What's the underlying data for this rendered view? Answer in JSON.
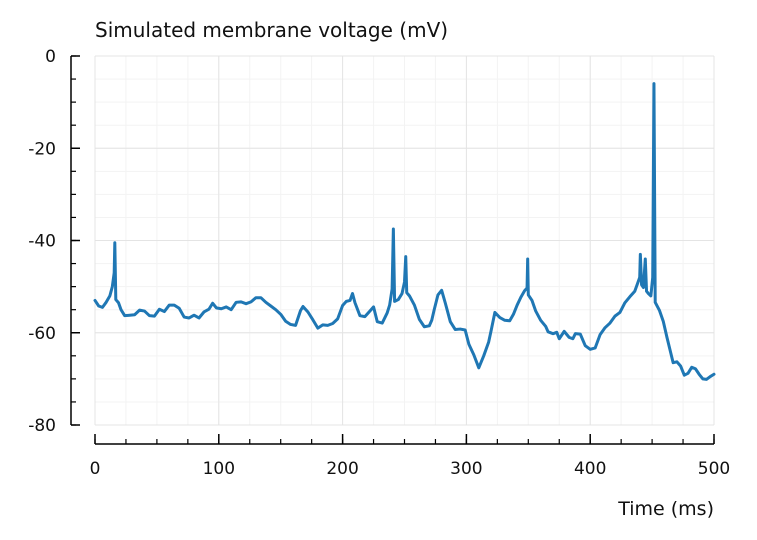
{
  "chart_data": {
    "type": "line",
    "title": "Simulated membrane voltage (mV)",
    "xlabel": "Time (ms)",
    "ylabel": "",
    "xlim": [
      0,
      500
    ],
    "ylim": [
      -80,
      0
    ],
    "x_ticks": [
      0,
      100,
      200,
      300,
      400,
      500
    ],
    "y_ticks": [
      0,
      -20,
      -40,
      -60,
      -80
    ],
    "grid": true,
    "legend": "none",
    "series": [
      {
        "color": "#1f77b4",
        "points": [
          [
            0,
            -53
          ],
          [
            3,
            -54.2
          ],
          [
            6,
            -54.5
          ],
          [
            9,
            -53.4
          ],
          [
            12,
            -52
          ],
          [
            14,
            -50
          ],
          [
            15.5,
            -47
          ],
          [
            16,
            -40.5
          ],
          [
            16.8,
            -52.8
          ],
          [
            19,
            -53.5
          ],
          [
            21,
            -55
          ],
          [
            24,
            -56.3
          ],
          [
            28,
            -56.2
          ],
          [
            32,
            -56.1
          ],
          [
            36,
            -55.1
          ],
          [
            40,
            -55.3
          ],
          [
            44,
            -56.3
          ],
          [
            48,
            -56.4
          ],
          [
            52,
            -54.9
          ],
          [
            56,
            -55.4
          ],
          [
            60,
            -54
          ],
          [
            64,
            -54
          ],
          [
            68,
            -54.7
          ],
          [
            72,
            -56.6
          ],
          [
            76,
            -56.8
          ],
          [
            80,
            -56.2
          ],
          [
            84,
            -56.8
          ],
          [
            88,
            -55.5
          ],
          [
            92,
            -54.9
          ],
          [
            95,
            -53.6
          ],
          [
            98,
            -54.6
          ],
          [
            102,
            -54.8
          ],
          [
            106,
            -54.4
          ],
          [
            110,
            -55
          ],
          [
            114,
            -53.4
          ],
          [
            118,
            -53.3
          ],
          [
            122,
            -53.7
          ],
          [
            126,
            -53.3
          ],
          [
            130,
            -52.4
          ],
          [
            134,
            -52.4
          ],
          [
            138,
            -53.4
          ],
          [
            142,
            -54.2
          ],
          [
            146,
            -55
          ],
          [
            150,
            -56
          ],
          [
            154,
            -57.5
          ],
          [
            158,
            -58.2
          ],
          [
            162,
            -58.4
          ],
          [
            166,
            -55.2
          ],
          [
            168,
            -54.3
          ],
          [
            172,
            -55.5
          ],
          [
            176,
            -57.2
          ],
          [
            180,
            -59
          ],
          [
            184,
            -58.3
          ],
          [
            188,
            -58.4
          ],
          [
            192,
            -58
          ],
          [
            196,
            -57
          ],
          [
            200,
            -54.1
          ],
          [
            203,
            -53.2
          ],
          [
            206,
            -53
          ],
          [
            208,
            -51.5
          ],
          [
            210,
            -53.5
          ],
          [
            214,
            -56.3
          ],
          [
            218,
            -56.5
          ],
          [
            222,
            -55.3
          ],
          [
            225,
            -54.4
          ],
          [
            228,
            -57.6
          ],
          [
            232,
            -57.9
          ],
          [
            236,
            -55.7
          ],
          [
            238,
            -54
          ],
          [
            240,
            -50.5
          ],
          [
            241,
            -37.5
          ],
          [
            242,
            -53.2
          ],
          [
            245,
            -52.8
          ],
          [
            248,
            -51.5
          ],
          [
            250,
            -49
          ],
          [
            251,
            -43.5
          ],
          [
            251.8,
            -51.3
          ],
          [
            254,
            -52
          ],
          [
            258,
            -54
          ],
          [
            262,
            -57.1
          ],
          [
            266,
            -58.7
          ],
          [
            270,
            -58.5
          ],
          [
            272,
            -57.3
          ],
          [
            274,
            -55
          ],
          [
            277,
            -51.8
          ],
          [
            280,
            -50.8
          ],
          [
            283,
            -53.6
          ],
          [
            287,
            -57.6
          ],
          [
            291,
            -59.3
          ],
          [
            295,
            -59.2
          ],
          [
            299,
            -59.4
          ],
          [
            302,
            -62.5
          ],
          [
            306,
            -64.8
          ],
          [
            310,
            -67.6
          ],
          [
            314,
            -65
          ],
          [
            318,
            -62
          ],
          [
            320,
            -59.5
          ],
          [
            323,
            -55.6
          ],
          [
            327,
            -56.7
          ],
          [
            331,
            -57.3
          ],
          [
            335,
            -57.4
          ],
          [
            338,
            -56
          ],
          [
            341,
            -54
          ],
          [
            344,
            -52.3
          ],
          [
            347,
            -50.9
          ],
          [
            349,
            -50.3
          ],
          [
            349.5,
            -44
          ],
          [
            350,
            -51.8
          ],
          [
            353,
            -53
          ],
          [
            356,
            -55.3
          ],
          [
            360,
            -57.3
          ],
          [
            364,
            -58.6
          ],
          [
            366,
            -59.8
          ],
          [
            370,
            -60.2
          ],
          [
            373,
            -59.9
          ],
          [
            375,
            -61.3
          ],
          [
            379,
            -59.7
          ],
          [
            383,
            -61
          ],
          [
            386,
            -61.3
          ],
          [
            388,
            -60.2
          ],
          [
            392,
            -60.3
          ],
          [
            396,
            -62.8
          ],
          [
            400,
            -63.6
          ],
          [
            404,
            -63.3
          ],
          [
            408,
            -60.4
          ],
          [
            412,
            -58.9
          ],
          [
            416,
            -57.9
          ],
          [
            420,
            -56.4
          ],
          [
            424,
            -55.6
          ],
          [
            428,
            -53.5
          ],
          [
            432,
            -52.2
          ],
          [
            436,
            -51
          ],
          [
            438,
            -49.5
          ],
          [
            440,
            -48
          ],
          [
            440.5,
            -43
          ],
          [
            441.5,
            -49.6
          ],
          [
            443,
            -50.2
          ],
          [
            444.5,
            -44
          ],
          [
            445.5,
            -51
          ],
          [
            447,
            -51.5
          ],
          [
            449,
            -52
          ],
          [
            450.5,
            -48
          ],
          [
            451.5,
            -6
          ],
          [
            452.5,
            -53.4
          ],
          [
            456,
            -55.2
          ],
          [
            459,
            -57.5
          ],
          [
            462,
            -61
          ],
          [
            465,
            -64.3
          ],
          [
            467,
            -66.5
          ],
          [
            470,
            -66.3
          ],
          [
            473,
            -67.2
          ],
          [
            476,
            -69.2
          ],
          [
            479,
            -68.8
          ],
          [
            482,
            -67.5
          ],
          [
            485,
            -67.8
          ],
          [
            488,
            -69
          ],
          [
            491,
            -70
          ],
          [
            494,
            -70.1
          ],
          [
            497,
            -69.5
          ],
          [
            500,
            -69
          ]
        ]
      }
    ]
  }
}
